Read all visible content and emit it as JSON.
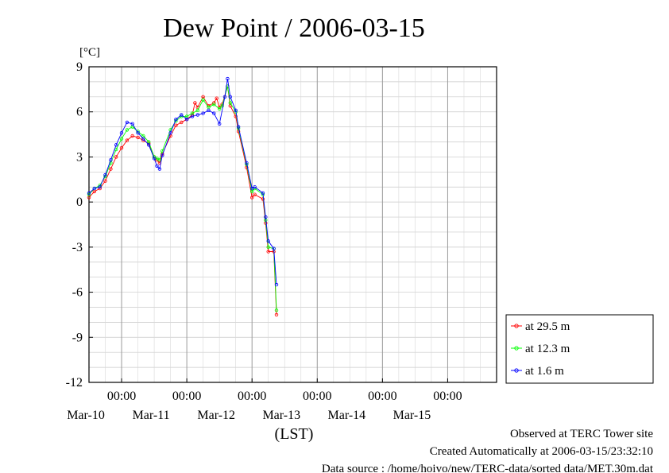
{
  "chart_data": {
    "type": "line",
    "title": "Dew Point / 2006-03-15",
    "ylabel": "[°C]",
    "xlabel": "(LST)",
    "ylim": [
      -12,
      9
    ],
    "yticks": [
      "9",
      "6",
      "3",
      "0",
      "-3",
      "-6",
      "-9",
      "-12"
    ],
    "y_tick_values": [
      9,
      6,
      3,
      0,
      -3,
      -6,
      -9,
      -12
    ],
    "xlim": [
      "2006-03-09T12:00",
      "2006-03-15T18:00"
    ],
    "x_tick_time_label": "00:00",
    "x_tick_dates": [
      "Mar-10",
      "Mar-11",
      "Mar-12",
      "Mar-13",
      "Mar-14",
      "Mar-15"
    ],
    "x_tick_values": [
      "2006-03-10T00:00",
      "2006-03-11T00:00",
      "2006-03-12T00:00",
      "2006-03-13T00:00",
      "2006-03-14T00:00",
      "2006-03-15T00:00"
    ],
    "grid": true,
    "legend_position": "right",
    "series": [
      {
        "name": "at 29.5 m",
        "color": "#ff0000",
        "points": [
          [
            "2006-03-09T12:00",
            0.3
          ],
          [
            "2006-03-09T14:00",
            0.7
          ],
          [
            "2006-03-09T16:00",
            0.9
          ],
          [
            "2006-03-09T18:00",
            1.4
          ],
          [
            "2006-03-09T20:00",
            2.2
          ],
          [
            "2006-03-09T22:00",
            3.0
          ],
          [
            "2006-03-10T00:00",
            3.6
          ],
          [
            "2006-03-10T02:00",
            4.1
          ],
          [
            "2006-03-10T04:00",
            4.4
          ],
          [
            "2006-03-10T06:00",
            4.3
          ],
          [
            "2006-03-10T08:00",
            4.1
          ],
          [
            "2006-03-10T10:00",
            3.9
          ],
          [
            "2006-03-10T12:00",
            3.0
          ],
          [
            "2006-03-10T13:00",
            2.8
          ],
          [
            "2006-03-10T14:00",
            2.6
          ],
          [
            "2006-03-10T15:00",
            3.2
          ],
          [
            "2006-03-10T18:00",
            4.4
          ],
          [
            "2006-03-10T20:00",
            5.1
          ],
          [
            "2006-03-10T22:00",
            5.3
          ],
          [
            "2006-03-11T00:00",
            5.5
          ],
          [
            "2006-03-11T02:00",
            5.8
          ],
          [
            "2006-03-11T03:00",
            6.6
          ],
          [
            "2006-03-11T04:00",
            6.3
          ],
          [
            "2006-03-11T06:00",
            7.0
          ],
          [
            "2006-03-11T08:00",
            6.4
          ],
          [
            "2006-03-11T10:00",
            6.6
          ],
          [
            "2006-03-11T11:00",
            6.9
          ],
          [
            "2006-03-11T12:00",
            6.3
          ],
          [
            "2006-03-11T13:00",
            6.5
          ],
          [
            "2006-03-11T15:00",
            7.7
          ],
          [
            "2006-03-11T16:00",
            6.4
          ],
          [
            "2006-03-11T18:00",
            5.7
          ],
          [
            "2006-03-11T19:00",
            4.7
          ],
          [
            "2006-03-11T22:00",
            2.3
          ],
          [
            "2006-03-12T00:00",
            0.3
          ],
          [
            "2006-03-12T01:00",
            0.5
          ],
          [
            "2006-03-12T04:00",
            0.2
          ],
          [
            "2006-03-12T05:00",
            -1.4
          ],
          [
            "2006-03-12T06:00",
            -3.3
          ],
          [
            "2006-03-12T08:00",
            -3.3
          ],
          [
            "2006-03-12T09:00",
            -7.5
          ]
        ]
      },
      {
        "name": "at 12.3 m",
        "color": "#00ff00",
        "points": [
          [
            "2006-03-09T12:00",
            0.5
          ],
          [
            "2006-03-09T14:00",
            0.9
          ],
          [
            "2006-03-09T16:00",
            1.1
          ],
          [
            "2006-03-09T18:00",
            1.7
          ],
          [
            "2006-03-09T20:00",
            2.6
          ],
          [
            "2006-03-09T22:00",
            3.5
          ],
          [
            "2006-03-10T00:00",
            4.2
          ],
          [
            "2006-03-10T02:00",
            4.8
          ],
          [
            "2006-03-10T04:00",
            5.0
          ],
          [
            "2006-03-10T06:00",
            4.7
          ],
          [
            "2006-03-10T08:00",
            4.4
          ],
          [
            "2006-03-10T10:00",
            4.0
          ],
          [
            "2006-03-10T12:00",
            3.0
          ],
          [
            "2006-03-10T13:00",
            2.9
          ],
          [
            "2006-03-10T14:00",
            2.8
          ],
          [
            "2006-03-10T15:00",
            3.4
          ],
          [
            "2006-03-10T18:00",
            4.8
          ],
          [
            "2006-03-10T20:00",
            5.4
          ],
          [
            "2006-03-10T22:00",
            5.7
          ],
          [
            "2006-03-11T00:00",
            5.7
          ],
          [
            "2006-03-11T02:00",
            5.9
          ],
          [
            "2006-03-11T04:00",
            6.1
          ],
          [
            "2006-03-11T06:00",
            6.8
          ],
          [
            "2006-03-11T08:00",
            6.3
          ],
          [
            "2006-03-11T10:00",
            6.5
          ],
          [
            "2006-03-11T12:00",
            6.2
          ],
          [
            "2006-03-11T13:00",
            6.4
          ],
          [
            "2006-03-11T15:00",
            7.7
          ],
          [
            "2006-03-11T16:00",
            6.6
          ],
          [
            "2006-03-11T18:00",
            6.0
          ],
          [
            "2006-03-11T19:00",
            4.9
          ],
          [
            "2006-03-11T22:00",
            2.5
          ],
          [
            "2006-03-12T00:00",
            0.7
          ],
          [
            "2006-03-12T01:00",
            0.9
          ],
          [
            "2006-03-12T04:00",
            0.5
          ],
          [
            "2006-03-12T05:00",
            -1.2
          ],
          [
            "2006-03-12T06:00",
            -3.0
          ],
          [
            "2006-03-12T08:00",
            -3.1
          ],
          [
            "2006-03-12T09:00",
            -7.2
          ]
        ]
      },
      {
        "name": "at 1.6 m",
        "color": "#0000ff",
        "points": [
          [
            "2006-03-09T12:00",
            0.6
          ],
          [
            "2006-03-09T14:00",
            0.9
          ],
          [
            "2006-03-09T16:00",
            1.0
          ],
          [
            "2006-03-09T18:00",
            1.8
          ],
          [
            "2006-03-09T20:00",
            2.8
          ],
          [
            "2006-03-09T22:00",
            3.8
          ],
          [
            "2006-03-10T00:00",
            4.6
          ],
          [
            "2006-03-10T02:00",
            5.3
          ],
          [
            "2006-03-10T04:00",
            5.2
          ],
          [
            "2006-03-10T06:00",
            4.6
          ],
          [
            "2006-03-10T08:00",
            4.2
          ],
          [
            "2006-03-10T10:00",
            3.8
          ],
          [
            "2006-03-10T12:00",
            2.9
          ],
          [
            "2006-03-10T13:00",
            2.4
          ],
          [
            "2006-03-10T14:00",
            2.2
          ],
          [
            "2006-03-10T15:00",
            3.1
          ],
          [
            "2006-03-10T18:00",
            4.6
          ],
          [
            "2006-03-10T20:00",
            5.5
          ],
          [
            "2006-03-10T22:00",
            5.8
          ],
          [
            "2006-03-11T00:00",
            5.5
          ],
          [
            "2006-03-11T02:00",
            5.7
          ],
          [
            "2006-03-11T04:00",
            5.8
          ],
          [
            "2006-03-11T06:00",
            5.9
          ],
          [
            "2006-03-11T08:00",
            6.1
          ],
          [
            "2006-03-11T10:00",
            5.9
          ],
          [
            "2006-03-11T12:00",
            5.2
          ],
          [
            "2006-03-11T14:00",
            7.0
          ],
          [
            "2006-03-11T15:00",
            8.2
          ],
          [
            "2006-03-11T16:00",
            7.0
          ],
          [
            "2006-03-11T18:00",
            6.1
          ],
          [
            "2006-03-11T19:00",
            5.0
          ],
          [
            "2006-03-11T22:00",
            2.6
          ],
          [
            "2006-03-12T00:00",
            0.9
          ],
          [
            "2006-03-12T01:00",
            1.0
          ],
          [
            "2006-03-12T04:00",
            0.6
          ],
          [
            "2006-03-12T05:00",
            -1.0
          ],
          [
            "2006-03-12T06:00",
            -2.6
          ],
          [
            "2006-03-12T08:00",
            -3.1
          ],
          [
            "2006-03-12T09:00",
            -5.5
          ]
        ]
      }
    ]
  },
  "footer": {
    "line1": "Observed at TERC Tower site",
    "line2": "Created Automatically at 2006-03-15/23:32:10",
    "line3": "Data source : /home/hoivo/new/TERC-data/sorted  data/MET.30m.dat"
  }
}
